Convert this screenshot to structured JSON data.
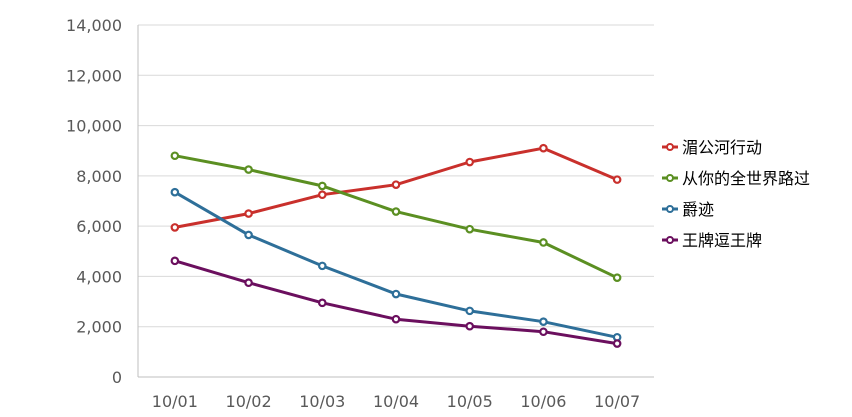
{
  "chart_data": {
    "type": "line",
    "title": "",
    "xlabel": "",
    "ylabel": "",
    "categories": [
      "10/01",
      "10/02",
      "10/03",
      "10/04",
      "10/05",
      "10/06",
      "10/07"
    ],
    "ylim": [
      0,
      14000
    ],
    "y_ticks": [
      0,
      2000,
      4000,
      6000,
      8000,
      10000,
      12000,
      14000
    ],
    "y_tick_labels": [
      "0",
      "2,000",
      "4,000",
      "6,000",
      "8,000",
      "10,000",
      "12,000",
      "14,000"
    ],
    "grid": true,
    "legend_position": "right",
    "series": [
      {
        "name": "湄公河行动",
        "color": "#c9302c",
        "values": [
          5950,
          6500,
          7250,
          7650,
          8550,
          9100,
          7850
        ]
      },
      {
        "name": "从你的全世界路过",
        "color": "#5b8f22",
        "values": [
          8800,
          8250,
          7600,
          6580,
          5880,
          5350,
          3950
        ]
      },
      {
        "name": "爵迹",
        "color": "#2e6f99",
        "values": [
          7350,
          5650,
          4420,
          3300,
          2630,
          2200,
          1580
        ]
      },
      {
        "name": "王牌逗王牌",
        "color": "#6b0f5e",
        "values": [
          4620,
          3750,
          2950,
          2300,
          2020,
          1800,
          1330
        ]
      }
    ]
  }
}
